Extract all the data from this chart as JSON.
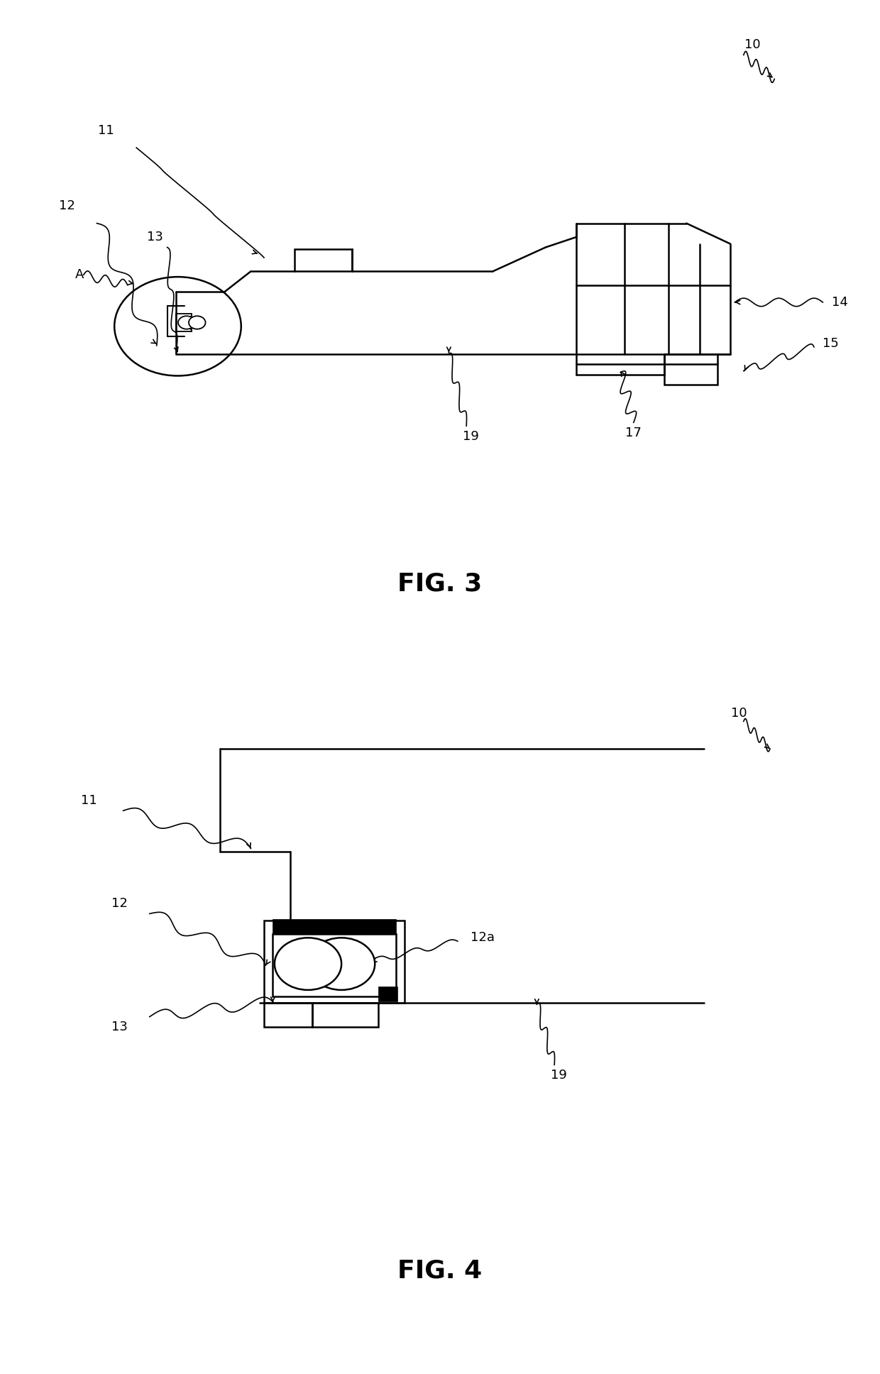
{
  "bg_color": "#ffffff",
  "line_color": "#000000",
  "lw": 1.8,
  "fig3_label": "FIG. 3",
  "fig4_label": "FIG. 4",
  "wavy_color": "#000000"
}
